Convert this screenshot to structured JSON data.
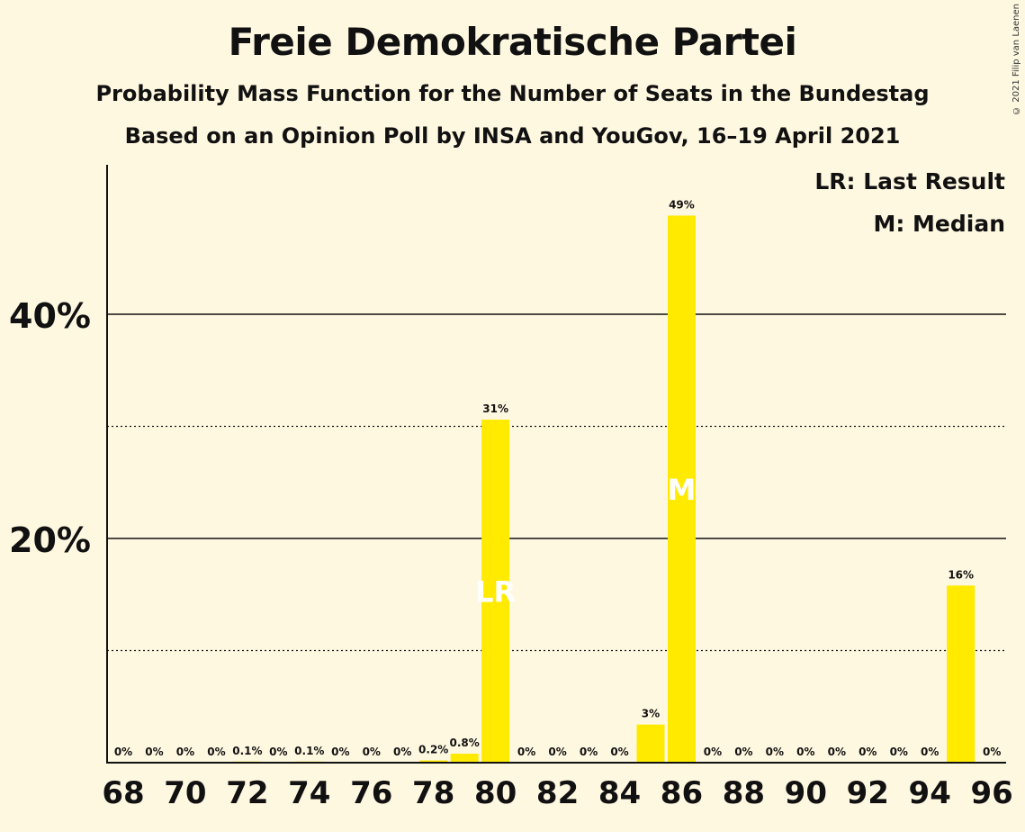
{
  "header": {
    "title": "Freie Demokratische Partei",
    "subtitle": "Probability Mass Function for the Number of Seats in the Bundestag",
    "source": "Based on an Opinion Poll by INSA and YouGov, 16–19 April 2021",
    "copyright": "© 2021 Filip van Laenen"
  },
  "colors": {
    "bar": "#ffea00",
    "background": "#fff8e1",
    "text": "#111111",
    "marker_text": "#ffffff"
  },
  "chart_data": {
    "type": "bar",
    "title": "Freie Demokratische Partei",
    "xlabel": "",
    "ylabel": "",
    "ylim": [
      0,
      53
    ],
    "yticks": [
      20,
      40
    ],
    "ytick_labels": [
      "20%",
      "40%"
    ],
    "minor_gridlines": [
      10,
      30
    ],
    "x": [
      68,
      69,
      70,
      71,
      72,
      73,
      74,
      75,
      76,
      77,
      78,
      79,
      80,
      81,
      82,
      83,
      84,
      85,
      86,
      87,
      88,
      89,
      90,
      91,
      92,
      93,
      94,
      95,
      96
    ],
    "xtick_labels": [
      "68",
      "70",
      "72",
      "74",
      "76",
      "78",
      "80",
      "82",
      "84",
      "86",
      "88",
      "90",
      "92",
      "94",
      "96"
    ],
    "values": [
      0,
      0,
      0,
      0,
      0.1,
      0,
      0.1,
      0,
      0,
      0,
      0.2,
      0.8,
      30.6,
      0,
      0,
      0,
      0,
      3.4,
      48.8,
      0,
      0,
      0,
      0,
      0,
      0,
      0,
      0,
      15.8,
      0
    ],
    "labels": [
      "0%",
      "0%",
      "0%",
      "0%",
      "0.1%",
      "0%",
      "0.1%",
      "0%",
      "0%",
      "0%",
      "0.2%",
      "0.8%",
      "31%",
      "0%",
      "0%",
      "0%",
      "0%",
      "3%",
      "49%",
      "0%",
      "0%",
      "0%",
      "0%",
      "0%",
      "0%",
      "0%",
      "0%",
      "16%",
      "0%"
    ],
    "markers": [
      {
        "x": 80,
        "text": "LR"
      },
      {
        "x": 86,
        "text": "M"
      }
    ],
    "legend": [
      "LR: Last Result",
      "M: Median"
    ],
    "legend_position": "top-right",
    "grid": true
  }
}
